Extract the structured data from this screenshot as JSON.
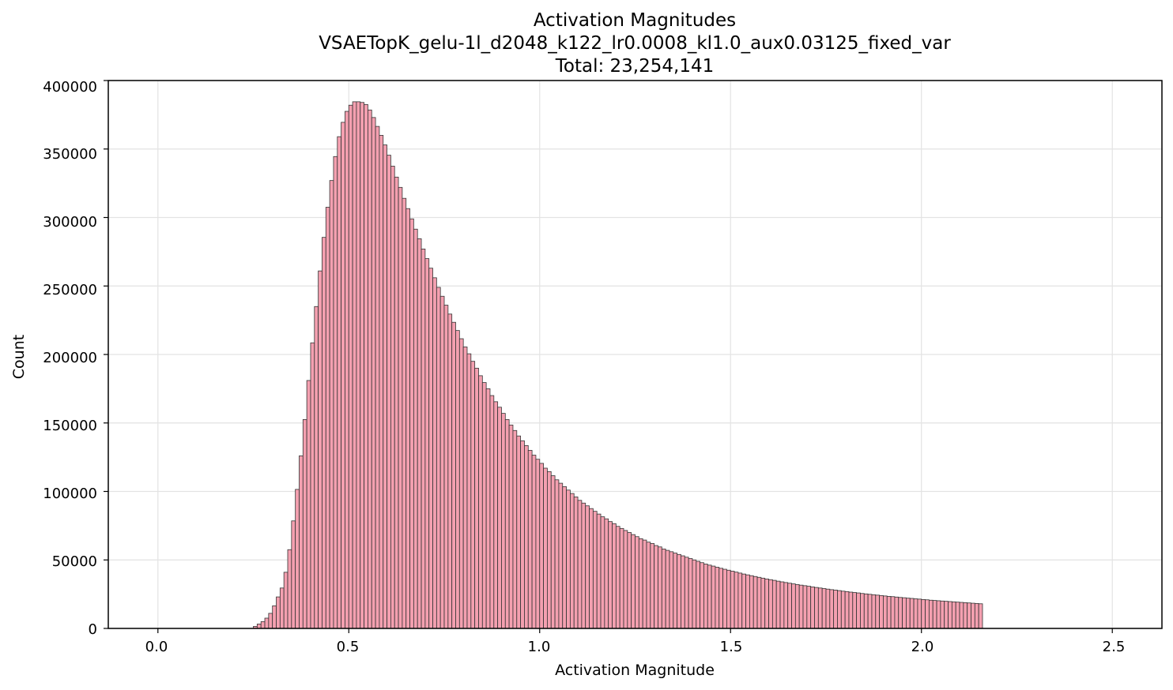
{
  "chart_data": {
    "type": "bar",
    "title_lines": [
      "Activation Magnitudes",
      "VSAETopK_gelu-1l_d2048_k122_lr0.0008_kl1.0_aux0.03125_fixed_var",
      "Total: 23,254,141"
    ],
    "xlabel": "Activation Magnitude",
    "ylabel": "Count",
    "xlim": [
      -0.13,
      2.63
    ],
    "ylim": [
      0,
      400000
    ],
    "x_ticks": [
      "0.0",
      "0.5",
      "1.0",
      "1.5",
      "2.0",
      "2.5"
    ],
    "y_ticks": [
      "0",
      "50000",
      "100000",
      "150000",
      "200000",
      "250000",
      "300000",
      "350000",
      "400000"
    ],
    "grid": true,
    "bar_color": "#f4a0b0",
    "edge_color": "#333333",
    "bin_start": 0.0,
    "bin_width": 0.01,
    "counts": [
      0,
      0,
      0,
      0,
      0,
      0,
      0,
      0,
      0,
      0,
      0,
      0,
      0,
      0,
      0,
      0,
      0,
      0,
      0,
      0,
      0,
      0,
      0,
      0,
      0,
      1500,
      3200,
      5000,
      7500,
      11000,
      16500,
      23000,
      29500,
      41000,
      57500,
      78500,
      101500,
      126000,
      152500,
      181000,
      208500,
      235000,
      261000,
      285500,
      307500,
      327000,
      344500,
      359000,
      369500,
      377500,
      382000,
      384500,
      384500,
      384000,
      382500,
      378500,
      373000,
      366500,
      360000,
      353000,
      345500,
      337500,
      329500,
      322000,
      314000,
      306500,
      299000,
      291500,
      284500,
      277000,
      270000,
      263000,
      256000,
      249000,
      242500,
      236000,
      229500,
      223500,
      217500,
      211500,
      205500,
      200500,
      195000,
      190000,
      184500,
      179500,
      175000,
      170000,
      165500,
      161500,
      157000,
      152500,
      148500,
      144500,
      140500,
      137000,
      133500,
      130000,
      126500,
      123500,
      120500,
      117000,
      114500,
      111500,
      108500,
      106000,
      103500,
      101000,
      98500,
      96000,
      93500,
      91500,
      89500,
      87500,
      85500,
      83500,
      81500,
      80000,
      78000,
      76500,
      74500,
      73000,
      71500,
      70000,
      68500,
      67000,
      65500,
      64500,
      63000,
      62000,
      60500,
      59500,
      58000,
      57000,
      56000,
      55000,
      54000,
      53000,
      52000,
      51000,
      50000,
      49000,
      48000,
      47000,
      46200,
      45500,
      44700,
      43900,
      43200,
      42500,
      41800,
      41100,
      40400,
      39700,
      39100,
      38500,
      37900,
      37300,
      36700,
      36100,
      35600,
      35100,
      34500,
      34000,
      33500,
      33000,
      32500,
      32000,
      31600,
      31200,
      30800,
      30300,
      29900,
      29500,
      29100,
      28700,
      28300,
      28000,
      27600,
      27200,
      26900,
      26500,
      26200,
      25900,
      25500,
      25200,
      24900,
      24600,
      24300,
      24000,
      23700,
      23400,
      23200,
      22900,
      22600,
      22400,
      22100,
      21900,
      21600,
      21400,
      21100,
      20900,
      20600,
      20400,
      20200,
      20000,
      19800,
      19600,
      19400,
      19200,
      19000,
      18800,
      18600,
      18400,
      18200,
      18000
    ]
  }
}
